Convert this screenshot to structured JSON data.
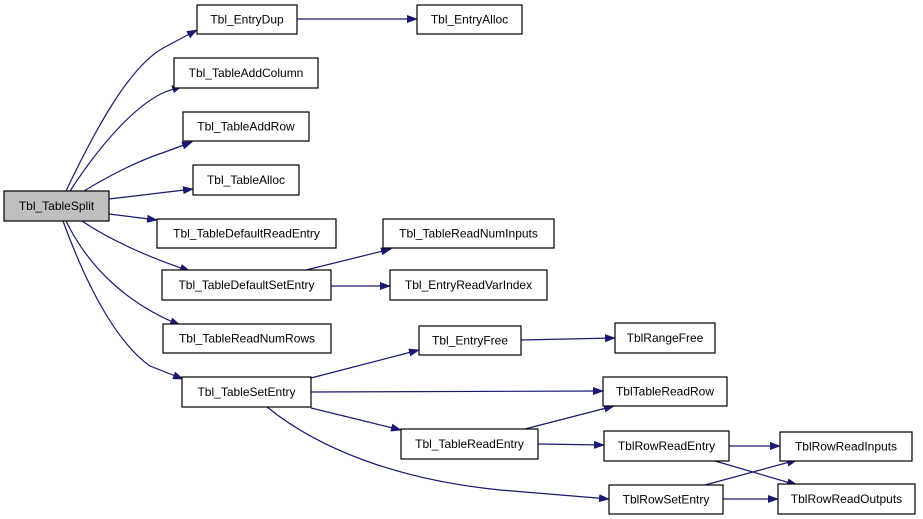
{
  "graph": {
    "edge_color": "#191970",
    "root_fill": "#bfbfbf",
    "nodes": {
      "split": "Tbl_TableSplit",
      "entry_dup": "Tbl_EntryDup",
      "entry_alloc": "Tbl_EntryAlloc",
      "add_column": "Tbl_TableAddColumn",
      "add_row": "Tbl_TableAddRow",
      "table_alloc": "Tbl_TableAlloc",
      "default_read_entry": "Tbl_TableDefaultReadEntry",
      "read_num_inputs": "Tbl_TableReadNumInputs",
      "default_set_entry": "Tbl_TableDefaultSetEntry",
      "entry_read_var_index": "Tbl_EntryReadVarIndex",
      "read_num_rows": "Tbl_TableReadNumRows",
      "set_entry": "Tbl_TableSetEntry",
      "entry_free": "Tbl_EntryFree",
      "range_free": "TblRangeFree",
      "table_read_row": "TblTableReadRow",
      "table_read_entry": "Tbl_TableReadEntry",
      "row_read_entry": "TblRowReadEntry",
      "row_read_inputs": "TblRowReadInputs",
      "row_set_entry": "TblRowSetEntry",
      "row_read_outputs": "TblRowReadOutputs"
    },
    "edges": [
      [
        "split",
        "entry_dup"
      ],
      [
        "entry_dup",
        "entry_alloc"
      ],
      [
        "split",
        "add_column"
      ],
      [
        "split",
        "add_row"
      ],
      [
        "split",
        "table_alloc"
      ],
      [
        "split",
        "default_read_entry"
      ],
      [
        "split",
        "default_set_entry"
      ],
      [
        "default_set_entry",
        "read_num_inputs"
      ],
      [
        "default_set_entry",
        "entry_read_var_index"
      ],
      [
        "split",
        "read_num_rows"
      ],
      [
        "split",
        "set_entry"
      ],
      [
        "set_entry",
        "entry_free"
      ],
      [
        "entry_free",
        "range_free"
      ],
      [
        "set_entry",
        "table_read_row"
      ],
      [
        "set_entry",
        "table_read_entry"
      ],
      [
        "set_entry",
        "row_set_entry"
      ],
      [
        "table_read_entry",
        "table_read_row"
      ],
      [
        "table_read_entry",
        "row_read_entry"
      ],
      [
        "row_read_entry",
        "row_read_inputs"
      ],
      [
        "row_read_entry",
        "row_read_outputs"
      ],
      [
        "row_set_entry",
        "row_read_inputs"
      ],
      [
        "row_set_entry",
        "row_read_outputs"
      ]
    ]
  }
}
